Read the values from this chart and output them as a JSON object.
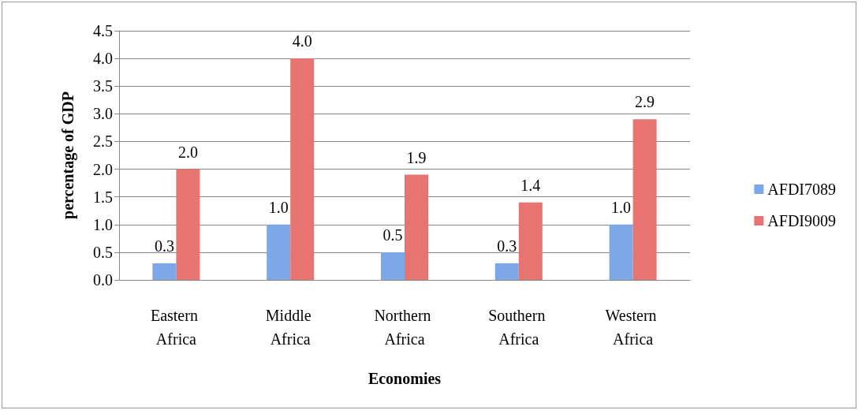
{
  "chart_data": {
    "type": "bar",
    "xlabel": "Economies",
    "ylabel": "percentage of GDP",
    "categories": [
      "Eastern Africa",
      "Middle Africa",
      "Northern Africa",
      "Southern Africa",
      "Western Africa"
    ],
    "series": [
      {
        "name": "AFDI7089",
        "color": "#7da7e6",
        "values": [
          0.3,
          1.0,
          0.5,
          0.3,
          1.0
        ],
        "value_labels": [
          "0.3",
          "1.0",
          "0.5",
          "0.3",
          "1.0"
        ]
      },
      {
        "name": "AFDI9009",
        "color": "#e87471",
        "values": [
          2.0,
          4.0,
          1.9,
          1.4,
          2.9
        ],
        "value_labels": [
          "2.0",
          "4.0",
          "1.9",
          "1.4",
          "2.9"
        ]
      }
    ],
    "ylim": [
      0,
      4.5
    ],
    "yticks": [
      {
        "value": 0,
        "label": "0.0"
      },
      {
        "value": 0.5,
        "label": "0.5"
      },
      {
        "value": 1,
        "label": "1.0"
      },
      {
        "value": 1.5,
        "label": "1.5"
      },
      {
        "value": 2,
        "label": "2.0"
      },
      {
        "value": 2.5,
        "label": "2.5"
      },
      {
        "value": 3,
        "label": "3.0"
      },
      {
        "value": 3.5,
        "label": "3.5"
      },
      {
        "value": 4,
        "label": "4.0"
      },
      {
        "value": 4.5,
        "label": "4.5"
      }
    ],
    "grid": "y",
    "legend": "right"
  }
}
